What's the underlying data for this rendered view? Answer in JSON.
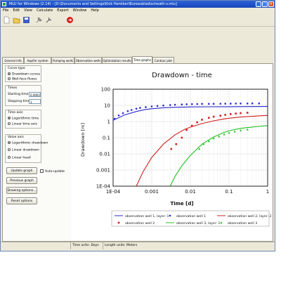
{
  "window": {
    "title": "MLU for Windows (2.14) - [D:\\Documents and Settings\\Kick Henkker\\Bureaublad\\scheath-s.mlu]"
  },
  "menu": [
    "File",
    "Edit",
    "View",
    "Calculate",
    "Export",
    "Window",
    "Help"
  ],
  "toolbar": {
    "icons": [
      "new-icon",
      "open-icon",
      "save-icon",
      "pin-icon",
      "tools-icon",
      "stop-icon"
    ]
  },
  "tabs": [
    {
      "label": "General info"
    },
    {
      "label": "Aquifer system"
    },
    {
      "label": "Pumping wells"
    },
    {
      "label": "Observation wells"
    },
    {
      "label": "Optimization results"
    },
    {
      "label": "Time graphs"
    },
    {
      "label": "Contour plot"
    }
  ],
  "left_panel": {
    "curve_type": {
      "title": "Curve type",
      "options": [
        "Drawdown curves",
        "Well-face fluxes"
      ],
      "selected": "Drawdown curves"
    },
    "times": {
      "title": "Times",
      "start_label": "Starting time [d]",
      "start_value": "0.0001",
      "stop_label": "Stopping time [d]",
      "stop_value": "1"
    },
    "time_axis": {
      "title": "Time axis",
      "options": [
        "Logarithmic time",
        "Linear time axis"
      ],
      "selected": "Logarithmic time"
    },
    "value_axis": {
      "title": "Value axis",
      "options": [
        "Logarithmic drawdown",
        "Linear drawdown",
        "Linear head"
      ],
      "selected": "Logarithmic drawdown"
    },
    "buttons": {
      "update": "Update graph",
      "auto_update": "Auto-update",
      "previous": "Previous graph",
      "drawing_options": "Drawing options...",
      "reset": "Reset options"
    }
  },
  "status": {
    "time_units": "Time units: Days",
    "length_units": "Length units: Meters"
  },
  "chart_data": {
    "type": "scatter",
    "title": "Drawdown - time",
    "xlabel": "Time [d]",
    "ylabel": "Drawdown [m]",
    "x_scale": "log",
    "y_scale": "log",
    "xlim": [
      0.0001,
      1
    ],
    "ylim": [
      0.0001,
      100
    ],
    "x_ticks": [
      "1E-04",
      "0.001",
      "0.01",
      "0.1",
      "1"
    ],
    "y_ticks": [
      "100",
      "10",
      "1",
      "0.1",
      "0.01",
      "0.001",
      "1E-04"
    ],
    "grid": true,
    "legend_position": "bottom",
    "series": [
      {
        "name": "observation well 1, layer: 1",
        "kind": "line",
        "color": "#2a2ad0",
        "x": [
          0.0001,
          0.0002,
          0.0004,
          0.0007,
          0.001,
          0.002,
          0.004,
          0.007,
          0.01,
          0.03,
          0.1,
          0.3,
          1
        ],
        "y": [
          1.2,
          2.6,
          4.2,
          5.6,
          6.2,
          7.1,
          7.6,
          7.9,
          8.0,
          8.2,
          8.3,
          8.4,
          8.5
        ]
      },
      {
        "name": "observation well 1",
        "kind": "points",
        "marker": "circle",
        "color": "#2a2ad0",
        "x": [
          0.00011,
          0.00014,
          0.00018,
          0.00024,
          0.0003,
          0.0004,
          0.0005,
          0.0007,
          0.001,
          0.0014,
          0.002,
          0.003,
          0.004,
          0.006,
          0.008,
          0.011,
          0.015,
          0.02,
          0.03,
          0.04,
          0.06,
          0.08,
          0.11,
          0.15,
          0.2,
          0.3,
          0.4,
          0.6
        ],
        "y": [
          1.5,
          2.4,
          3.3,
          4.4,
          5.2,
          6.2,
          7.0,
          7.8,
          8.6,
          9.2,
          9.8,
          10.5,
          11.0,
          11.4,
          11.7,
          12.0,
          12.2,
          12.4,
          12.5,
          12.6,
          12.7,
          12.8,
          12.9,
          13.0,
          13.1,
          13.1,
          13.2,
          13.2
        ]
      },
      {
        "name": "observation well 2, layer: 2",
        "kind": "line",
        "color": "#d02020",
        "x": [
          0.0004,
          0.0006,
          0.001,
          0.002,
          0.004,
          0.007,
          0.01,
          0.02,
          0.04,
          0.07,
          0.1,
          0.2,
          0.4,
          0.7,
          1
        ],
        "y": [
          0.0001,
          0.0008,
          0.006,
          0.04,
          0.15,
          0.32,
          0.45,
          0.75,
          1.1,
          1.4,
          1.6,
          1.9,
          2.1,
          2.3,
          2.4
        ]
      },
      {
        "name": "observation well 2",
        "kind": "points",
        "marker": "square",
        "color": "#d02020",
        "x": [
          0.0032,
          0.0043,
          0.006,
          0.008,
          0.011,
          0.015,
          0.02,
          0.03,
          0.04,
          0.06,
          0.08,
          0.11,
          0.15,
          0.2,
          0.3
        ],
        "y": [
          0.02,
          0.04,
          0.1,
          0.3,
          0.55,
          0.9,
          1.3,
          1.7,
          2.0,
          2.3,
          2.6,
          2.9,
          3.1,
          3.3,
          3.5
        ]
      },
      {
        "name": "observation well 3, layer: 1",
        "kind": "line",
        "color": "#20c020",
        "x": [
          0.003,
          0.004,
          0.006,
          0.01,
          0.02,
          0.04,
          0.07,
          0.1,
          0.2,
          0.4,
          0.7,
          1
        ],
        "y": [
          0.0001,
          0.0004,
          0.0018,
          0.008,
          0.04,
          0.11,
          0.2,
          0.27,
          0.38,
          0.46,
          0.52,
          0.56
        ]
      },
      {
        "name": "observation well 3",
        "kind": "points",
        "marker": "triangle",
        "color": "#20c020",
        "x": [
          0.017,
          0.022,
          0.03,
          0.04,
          0.055,
          0.075,
          0.1,
          0.14,
          0.2,
          0.3
        ],
        "y": [
          0.02,
          0.04,
          0.06,
          0.09,
          0.12,
          0.16,
          0.2,
          0.24,
          0.28,
          0.32
        ]
      }
    ]
  }
}
